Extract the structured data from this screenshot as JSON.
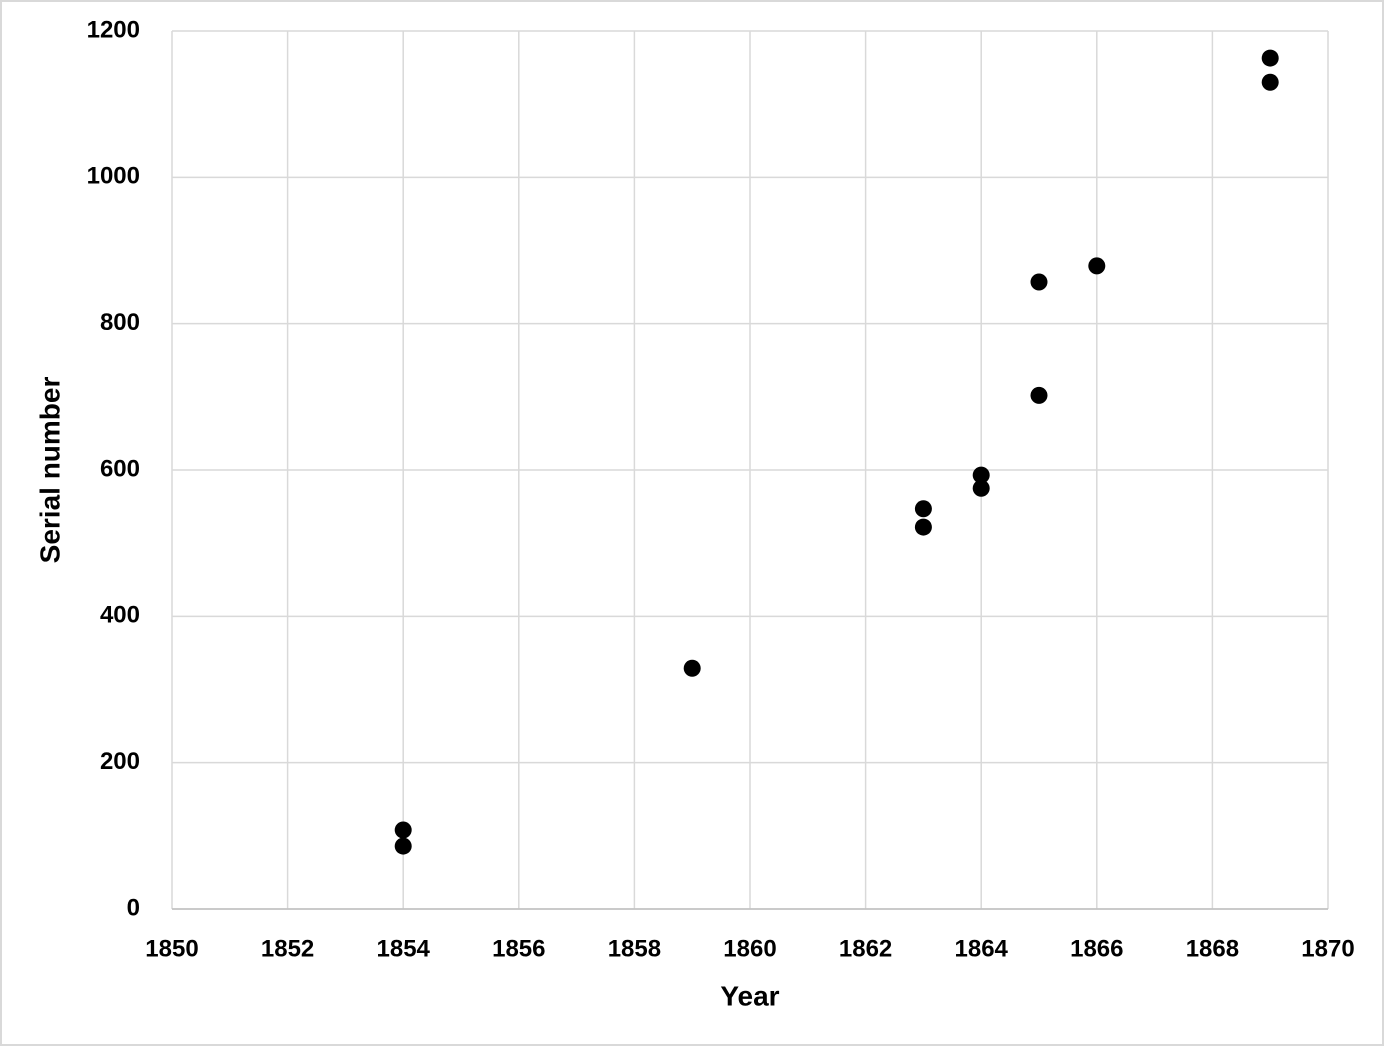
{
  "chart_data": {
    "type": "scatter",
    "x_label": "Year",
    "y_label": "Serial number",
    "series": [
      {
        "name": null,
        "color": "#000000",
        "x": [
          1854,
          1854,
          1859,
          1863,
          1863,
          1864,
          1864,
          1865,
          1865,
          1866,
          1869,
          1869
        ],
        "values": [
          108,
          86,
          329,
          547,
          522,
          593,
          575,
          857,
          702,
          879,
          1163,
          1130
        ]
      }
    ],
    "xlim": [
      1850,
      1870
    ],
    "xticks": [
      1850,
      1852,
      1854,
      1856,
      1858,
      1860,
      1862,
      1864,
      1866,
      1868,
      1870
    ],
    "ylim": [
      0,
      1200
    ],
    "yticks": [
      0,
      200,
      400,
      600,
      800,
      1000,
      1200
    ],
    "grid": true
  }
}
